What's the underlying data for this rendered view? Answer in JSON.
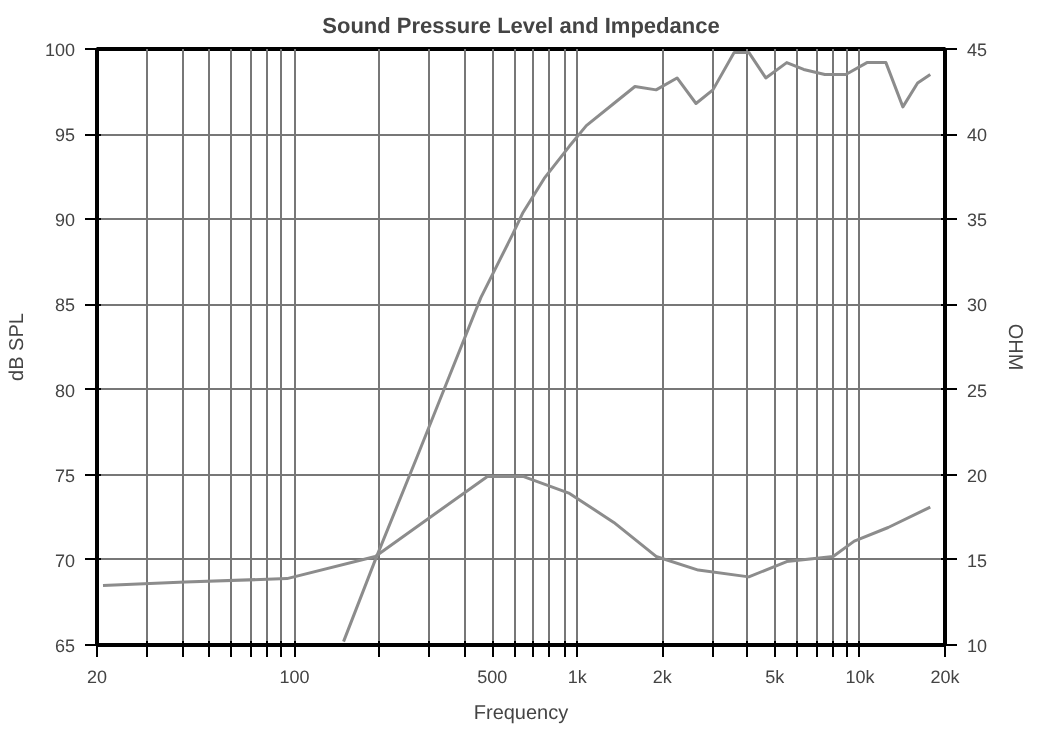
{
  "chart_data": {
    "type": "line",
    "title": "Sound Pressure Level and Impedance",
    "xlabel": "Frequency",
    "ylabel": "dB SPL",
    "y2label": "OHM",
    "log": "x",
    "grid": true,
    "marker": "none",
    "line_style": "solid",
    "xlim": [
      20,
      20000
    ],
    "ylim": [
      65,
      100
    ],
    "y2lim": [
      10,
      45
    ],
    "xticks": [
      {
        "value": 20,
        "label": "20"
      },
      {
        "value": 30,
        "label": null
      },
      {
        "value": 40,
        "label": null
      },
      {
        "value": 50,
        "label": null
      },
      {
        "value": 60,
        "label": null
      },
      {
        "value": 70,
        "label": null
      },
      {
        "value": 80,
        "label": null
      },
      {
        "value": 90,
        "label": null
      },
      {
        "value": 100,
        "label": "100"
      },
      {
        "value": 200,
        "label": null
      },
      {
        "value": 300,
        "label": null
      },
      {
        "value": 400,
        "label": null
      },
      {
        "value": 500,
        "label": "500"
      },
      {
        "value": 600,
        "label": null
      },
      {
        "value": 700,
        "label": null
      },
      {
        "value": 800,
        "label": null
      },
      {
        "value": 900,
        "label": null
      },
      {
        "value": 1000,
        "label": "1k"
      },
      {
        "value": 2000,
        "label": "2k"
      },
      {
        "value": 3000,
        "label": null
      },
      {
        "value": 4000,
        "label": null
      },
      {
        "value": 5000,
        "label": "5k"
      },
      {
        "value": 6000,
        "label": null
      },
      {
        "value": 7000,
        "label": null
      },
      {
        "value": 8000,
        "label": null
      },
      {
        "value": 9000,
        "label": null
      },
      {
        "value": 10000,
        "label": "10k"
      },
      {
        "value": 20000,
        "label": "20k"
      }
    ],
    "yticks": [
      65,
      70,
      75,
      80,
      85,
      90,
      95,
      100
    ],
    "y2ticks": [
      10,
      15,
      20,
      25,
      30,
      35,
      40,
      45
    ],
    "series": [
      {
        "color": "#8c8c8c",
        "x": [
          149,
          193,
          272,
          353,
          456,
          590,
          643,
          764,
          939,
          1077,
          1347,
          1600,
          1901,
          2255,
          2631,
          3020,
          3589,
          4045,
          4645,
          5510,
          6325,
          7515,
          8915,
          10590,
          12360,
          14190,
          16000,
          17740
        ],
        "values": [
          65.2,
          70.0,
          76.1,
          80.8,
          85.4,
          89.1,
          90.4,
          92.4,
          94.3,
          95.5,
          96.8,
          97.8,
          97.6,
          98.3,
          96.8,
          97.6,
          99.8,
          99.8,
          98.3,
          99.2,
          98.8,
          98.5,
          98.5,
          99.2,
          99.2,
          96.6,
          98.0,
          98.5
        ]
      },
      {
        "color": "#8c8c8c",
        "axis": "y2",
        "x": [
          21,
          41,
          94,
          193,
          481,
          643,
          939,
          1347,
          1901,
          2680,
          4045,
          5510,
          8040,
          9550,
          12590,
          17740
        ],
        "values": [
          13.5,
          13.7,
          13.9,
          15.2,
          19.9,
          19.9,
          18.9,
          17.2,
          15.2,
          14.4,
          14.0,
          14.9,
          15.2,
          16.1,
          16.9,
          18.1
        ]
      }
    ]
  }
}
